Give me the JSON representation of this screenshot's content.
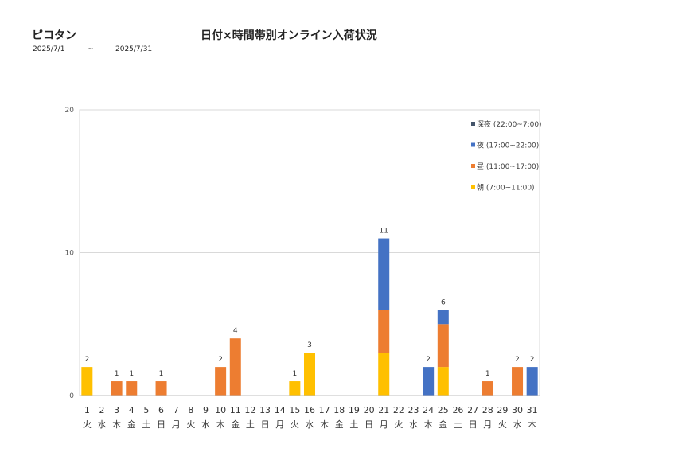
{
  "header": {
    "store": "ピコタン",
    "title": "日付×時間帯別オンライン入荷状況",
    "date_from": "2025/7/1",
    "date_sep": "~",
    "date_to": "2025/7/31"
  },
  "chart_data": {
    "type": "bar",
    "stacked": true,
    "ylim": [
      0,
      20
    ],
    "yticks": [
      0,
      10,
      20
    ],
    "categories": [
      "1",
      "2",
      "3",
      "4",
      "5",
      "6",
      "7",
      "8",
      "9",
      "10",
      "11",
      "12",
      "13",
      "14",
      "15",
      "16",
      "17",
      "18",
      "19",
      "20",
      "21",
      "22",
      "23",
      "24",
      "25",
      "26",
      "27",
      "28",
      "29",
      "30",
      "31"
    ],
    "weekdays": [
      "火",
      "水",
      "木",
      "金",
      "土",
      "日",
      "月",
      "火",
      "水",
      "木",
      "金",
      "土",
      "日",
      "月",
      "火",
      "水",
      "木",
      "金",
      "土",
      "日",
      "月",
      "火",
      "水",
      "木",
      "金",
      "土",
      "日",
      "月",
      "火",
      "水",
      "木"
    ],
    "series": [
      {
        "name": "朝 (7:00~11:00)",
        "color": "#ffc000",
        "values": [
          2,
          0,
          0,
          0,
          0,
          0,
          0,
          0,
          0,
          0,
          0,
          0,
          0,
          0,
          1,
          3,
          0,
          0,
          0,
          0,
          3,
          0,
          0,
          0,
          2,
          0,
          0,
          0,
          0,
          0,
          0
        ]
      },
      {
        "name": "昼 (11:00~17:00)",
        "color": "#ed7d31",
        "values": [
          0,
          0,
          1,
          1,
          0,
          1,
          0,
          0,
          0,
          2,
          4,
          0,
          0,
          0,
          0,
          0,
          0,
          0,
          0,
          0,
          3,
          0,
          0,
          0,
          3,
          0,
          0,
          1,
          0,
          2,
          0
        ]
      },
      {
        "name": "夜 (17:00~22:00)",
        "color": "#4472c4",
        "values": [
          0,
          0,
          0,
          0,
          0,
          0,
          0,
          0,
          0,
          0,
          0,
          0,
          0,
          0,
          0,
          0,
          0,
          0,
          0,
          0,
          5,
          0,
          0,
          2,
          1,
          0,
          0,
          0,
          0,
          0,
          2
        ]
      },
      {
        "name": "深夜 (22:00~7:00)",
        "color": "#44546a",
        "values": [
          0,
          0,
          0,
          0,
          0,
          0,
          0,
          0,
          0,
          0,
          0,
          0,
          0,
          0,
          0,
          0,
          0,
          0,
          0,
          0,
          0,
          0,
          0,
          0,
          0,
          0,
          0,
          0,
          0,
          0,
          0
        ]
      }
    ],
    "totals": [
      2,
      null,
      1,
      1,
      null,
      1,
      null,
      null,
      null,
      2,
      4,
      null,
      null,
      null,
      1,
      3,
      null,
      null,
      null,
      null,
      11,
      null,
      null,
      2,
      6,
      null,
      null,
      1,
      null,
      2,
      2
    ],
    "legend_order": [
      "深夜 (22:00~7:00)",
      "夜 (17:00~22:00)",
      "昼 (11:00~17:00)",
      "朝 (7:00~11:00)"
    ],
    "legend_position": "top-right",
    "grid": true
  }
}
